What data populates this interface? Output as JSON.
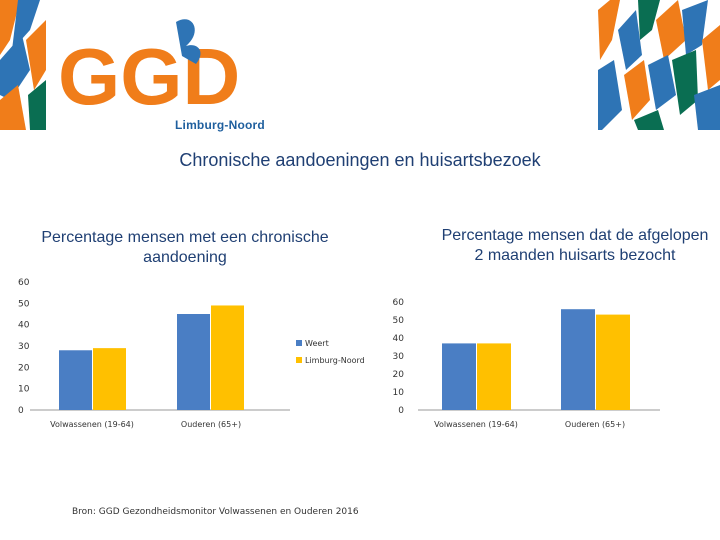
{
  "header": {
    "logo_text": "GGD",
    "logo_subtitle": "Limburg-Noord"
  },
  "title": "Chronische aandoeningen en huisartsbezoek",
  "source": "Bron: GGD Gezondheidsmonitor Volwassenen en Ouderen 2016",
  "colors": {
    "series_weert": "#4a7ec4",
    "series_limburg": "#ffc000",
    "orange": "#f07d1a",
    "blue": "#2e74b5",
    "green": "#0a6e52",
    "title": "#1f3f73"
  },
  "chart_data": [
    {
      "type": "bar",
      "title": "Percentage mensen met een chronische aandoening",
      "categories": [
        "Volwassenen (19-64)",
        "Ouderen (65+)"
      ],
      "series": [
        {
          "name": "Weert",
          "values": [
            28,
            45
          ]
        },
        {
          "name": "Limburg-Noord",
          "values": [
            29,
            49
          ]
        }
      ],
      "yticks": [
        "0",
        "10",
        "20",
        "30",
        "40",
        "50",
        "60"
      ],
      "ylim": [
        0,
        60
      ],
      "legend": "right"
    },
    {
      "type": "bar",
      "title": "Percentage mensen dat de afgelopen 2 maanden huisarts bezocht",
      "categories": [
        "Volwassenen (19-64)",
        "Ouderen (65+)"
      ],
      "series": [
        {
          "name": "Weert",
          "values": [
            37,
            56
          ]
        },
        {
          "name": "Limburg-Noord",
          "values": [
            37,
            53
          ]
        }
      ],
      "yticks": [
        "0",
        "10",
        "20",
        "30",
        "40",
        "50",
        "60"
      ],
      "ylim": [
        0,
        60
      ],
      "legend": "none"
    }
  ]
}
